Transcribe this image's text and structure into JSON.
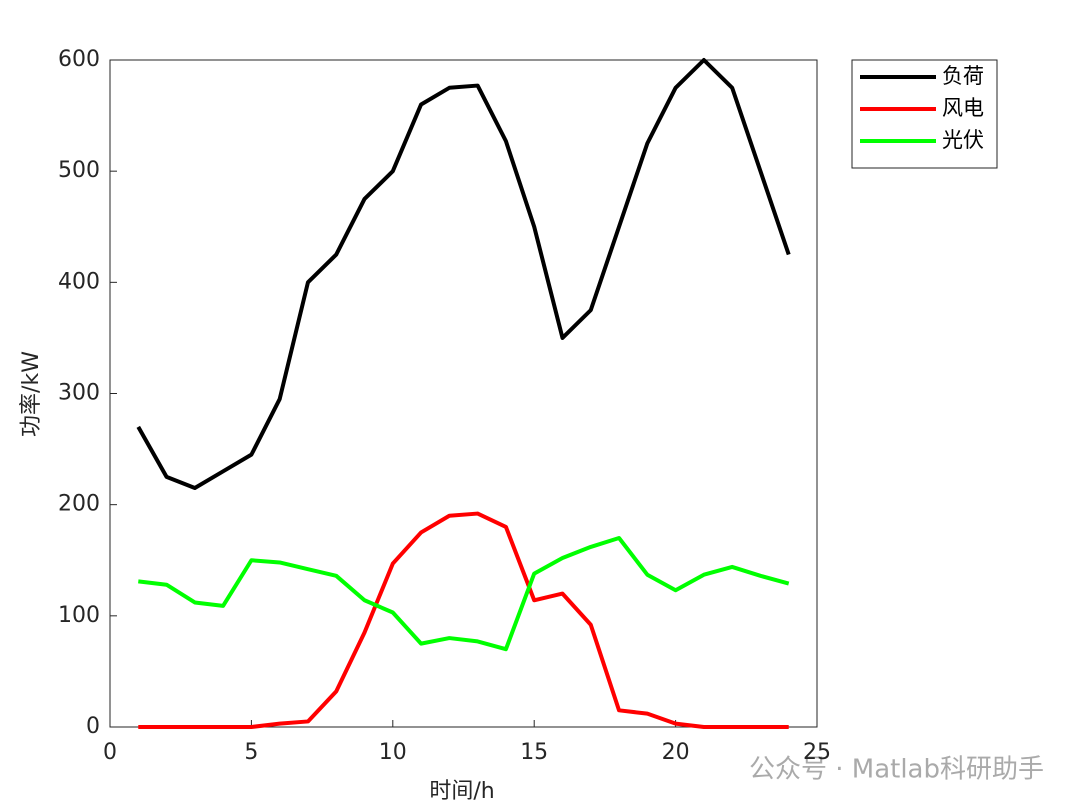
{
  "chart_data": {
    "type": "line",
    "x": [
      1,
      2,
      3,
      4,
      5,
      6,
      7,
      8,
      9,
      10,
      11,
      12,
      13,
      14,
      15,
      16,
      17,
      18,
      19,
      20,
      21,
      22,
      23,
      24
    ],
    "series": [
      {
        "name": "负荷",
        "color": "#000000",
        "values": [
          270,
          225,
          215,
          230,
          245,
          295,
          400,
          425,
          475,
          500,
          560,
          575,
          577,
          527,
          450,
          350,
          375,
          450,
          525,
          575,
          600,
          575,
          500,
          425
        ]
      },
      {
        "name": "风电",
        "color": "#ff0000",
        "values": [
          0,
          0,
          0,
          0,
          0,
          3,
          5,
          32,
          85,
          147,
          175,
          190,
          192,
          180,
          114,
          120,
          92,
          15,
          12,
          3,
          0,
          0,
          0,
          0
        ]
      },
      {
        "name": "光伏",
        "color": "#00ff00",
        "values": [
          131,
          128,
          112,
          109,
          150,
          148,
          142,
          136,
          114,
          103,
          75,
          80,
          77,
          70,
          138,
          152,
          162,
          170,
          137,
          123,
          137,
          144,
          136,
          129
        ]
      }
    ],
    "xlabel": "时间/h",
    "ylabel": "功率/kW",
    "xlim": [
      0,
      25
    ],
    "xticks": [
      0,
      5,
      10,
      15,
      20,
      25
    ],
    "ylim": [
      0,
      600
    ],
    "yticks": [
      0,
      100,
      200,
      300,
      400,
      500,
      600
    ],
    "legend": "outside-top-right",
    "watermark": "公众号 · Matlab科研助手"
  }
}
